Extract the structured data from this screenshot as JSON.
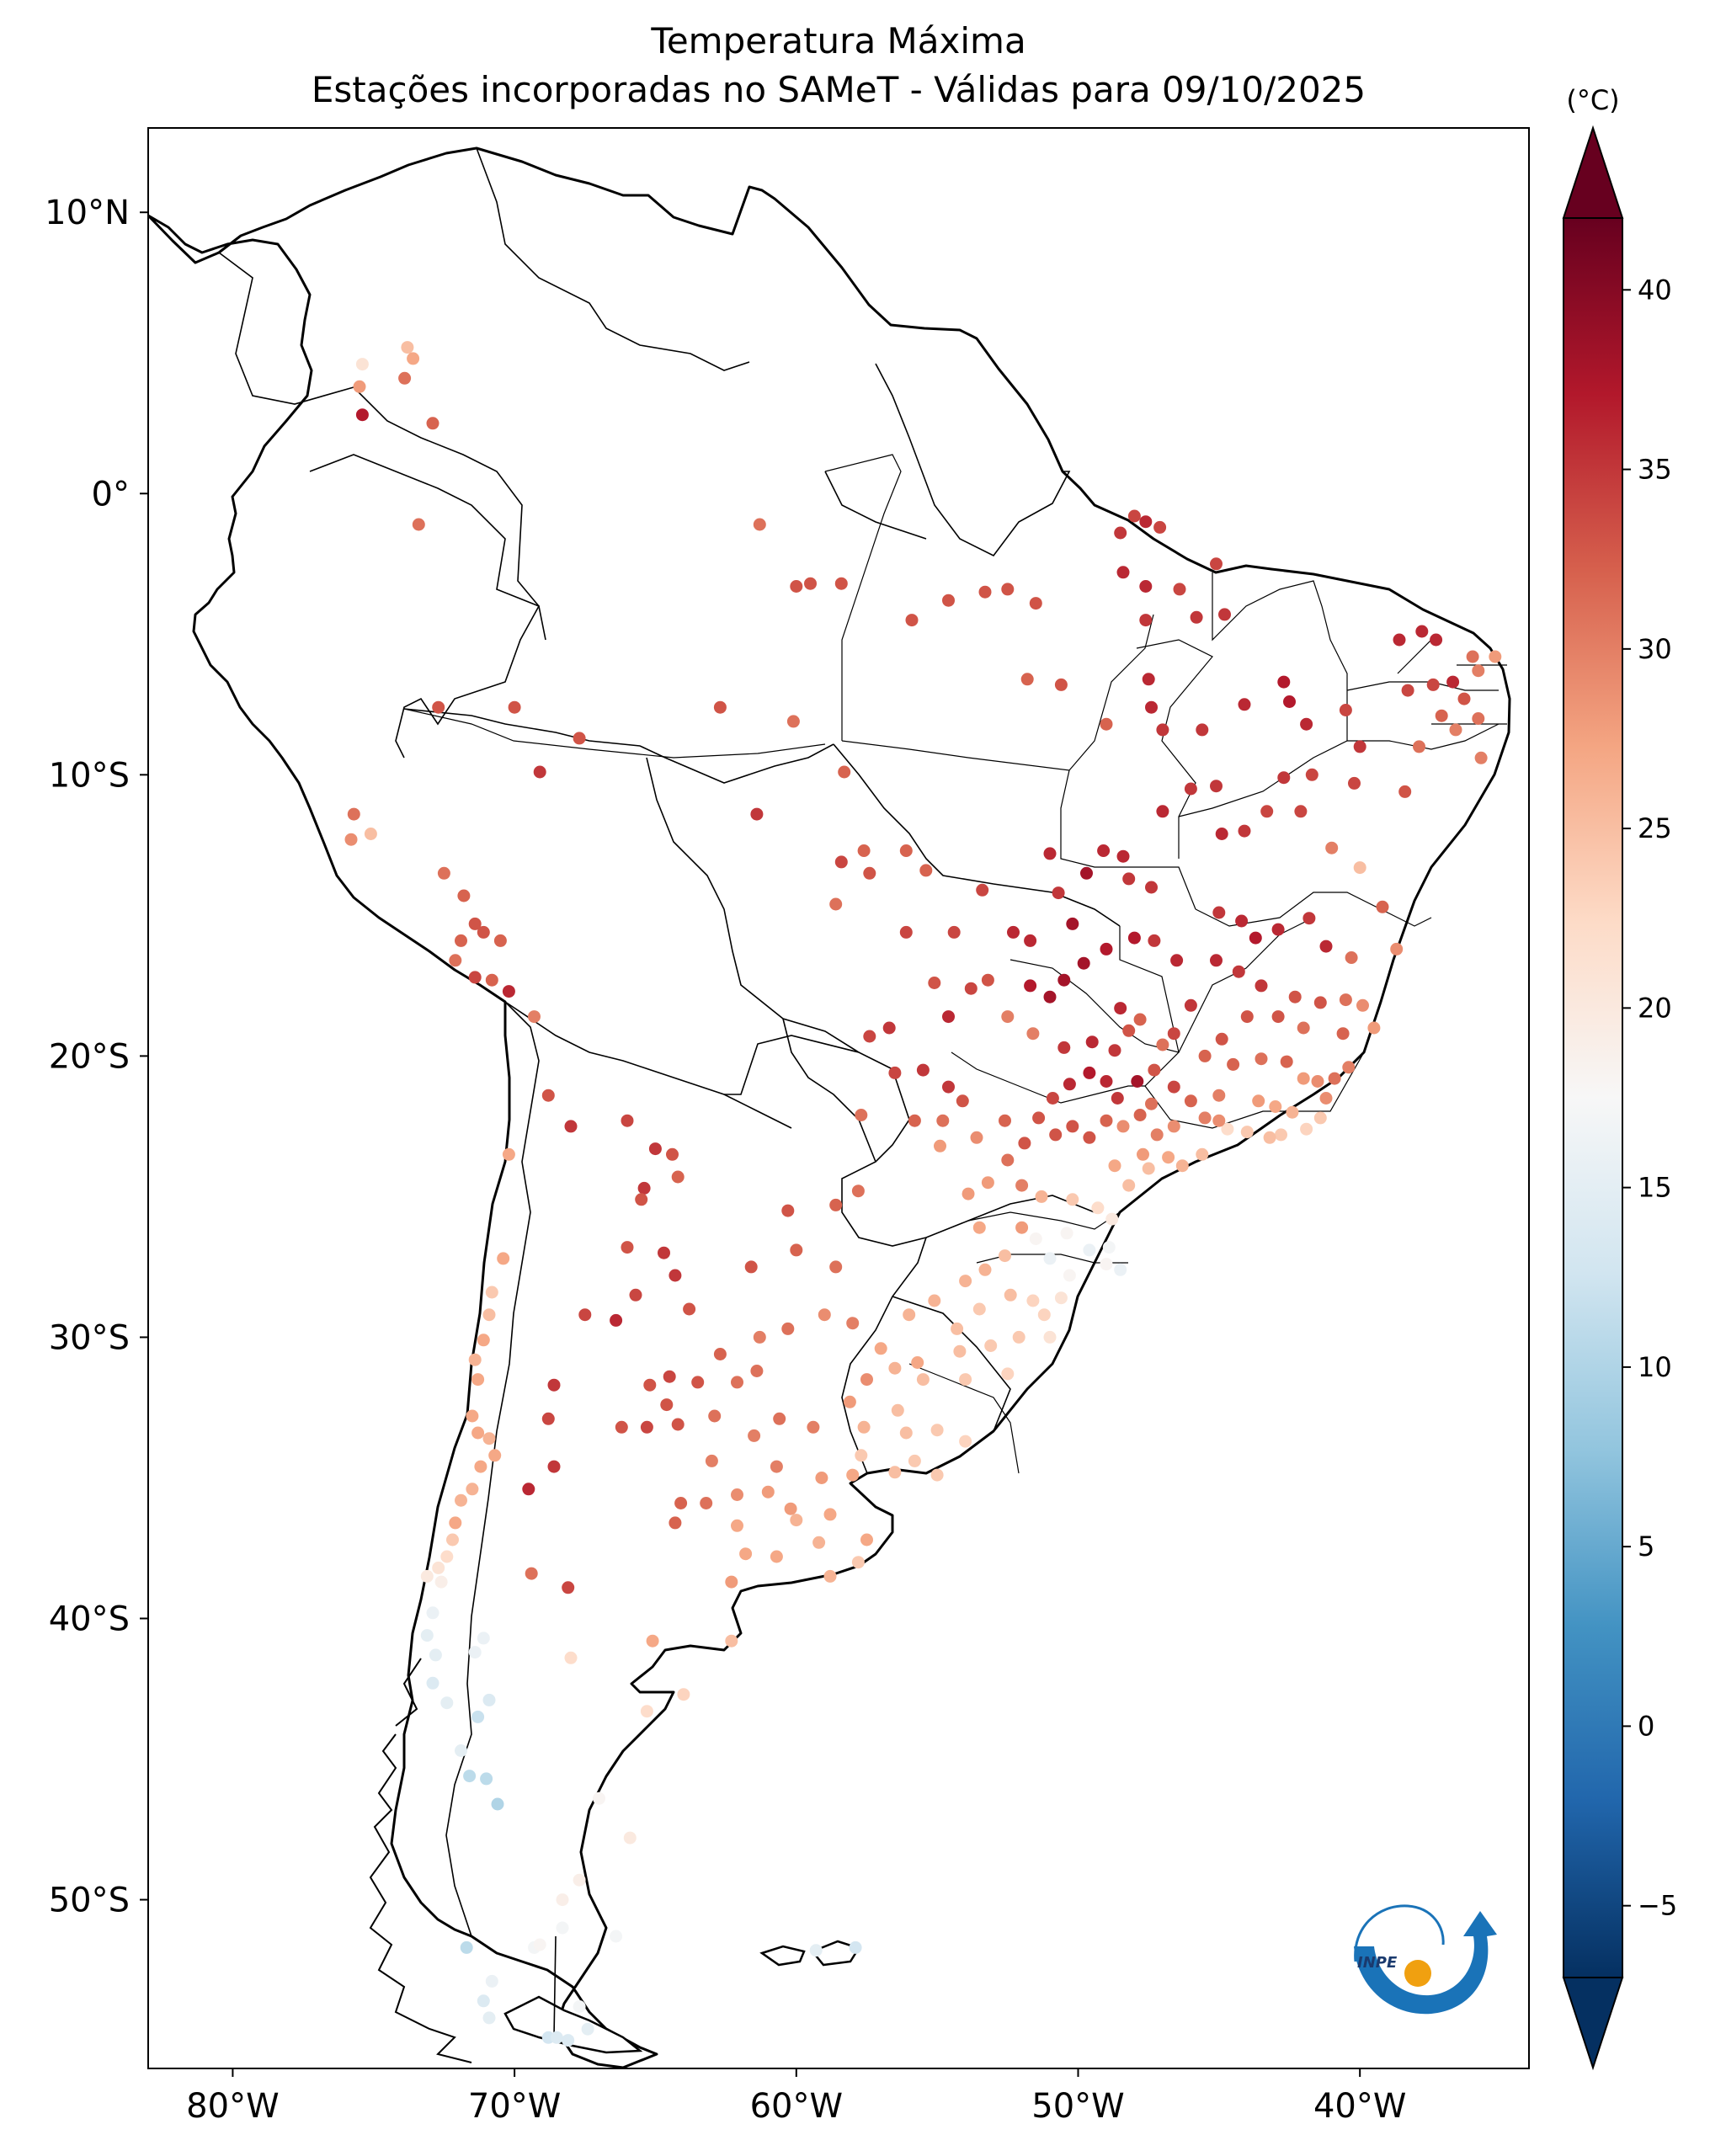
{
  "title": {
    "line1": "Temperatura Máxima",
    "line2": "Estações incorporadas no SAMeT - Válidas para 09/10/2025"
  },
  "colorbar": {
    "unit": "(°C)",
    "min": -7,
    "max": 42,
    "ticks": [
      "40",
      "35",
      "30",
      "25",
      "20",
      "15",
      "10",
      "5",
      "0",
      "−5"
    ],
    "tick_values": [
      40,
      35,
      30,
      25,
      20,
      15,
      10,
      5,
      0,
      -5
    ],
    "colormap": "RdBu_r",
    "stops": [
      "#053061",
      "#2166ac",
      "#4393c3",
      "#92c5de",
      "#d1e5f0",
      "#f7f7f7",
      "#fddbc7",
      "#f4a582",
      "#d6604d",
      "#b2182b",
      "#67001f"
    ]
  },
  "map": {
    "lon_range": [
      -83,
      -34
    ],
    "lat_range": [
      -56,
      13
    ],
    "lat_ticks": [
      "10°N",
      "0°",
      "10°S",
      "20°S",
      "30°S",
      "40°S",
      "50°S"
    ],
    "lat_tick_values": [
      10,
      0,
      -10,
      -20,
      -30,
      -40,
      -50
    ],
    "lon_ticks": [
      "80°W",
      "70°W",
      "60°W",
      "50°W",
      "40°W"
    ],
    "lon_tick_values": [
      -80,
      -70,
      -60,
      -50,
      -40
    ],
    "logo_text": "INPE"
  },
  "stations": [
    [
      -75.4,
      4.6,
      21
    ],
    [
      -75.5,
      3.8,
      28
    ],
    [
      -75.4,
      2.8,
      37
    ],
    [
      -73.8,
      5.2,
      25
    ],
    [
      -73.6,
      4.8,
      27
    ],
    [
      -73.9,
      4.1,
      31
    ],
    [
      -72.9,
      2.5,
      32
    ],
    [
      -73.4,
      -1.1,
      31
    ],
    [
      -61.3,
      -1.1,
      31
    ],
    [
      -60.0,
      -3.3,
      33
    ],
    [
      -59.5,
      -3.2,
      33
    ],
    [
      -58.4,
      -3.2,
      33
    ],
    [
      -55.9,
      -4.5,
      33
    ],
    [
      -54.6,
      -3.8,
      33
    ],
    [
      -53.3,
      -3.5,
      33
    ],
    [
      -52.5,
      -3.4,
      33
    ],
    [
      -51.5,
      -3.9,
      33
    ],
    [
      -48.5,
      -1.4,
      35
    ],
    [
      -47.6,
      -1.0,
      36
    ],
    [
      -48.0,
      -0.8,
      34
    ],
    [
      -47.1,
      -1.2,
      34
    ],
    [
      -48.4,
      -2.8,
      36
    ],
    [
      -47.6,
      -3.3,
      36
    ],
    [
      -47.6,
      -4.5,
      35
    ],
    [
      -46.4,
      -3.4,
      34
    ],
    [
      -45.8,
      -4.4,
      35
    ],
    [
      -44.8,
      -4.3,
      35
    ],
    [
      -45.1,
      -2.5,
      34
    ],
    [
      -50.6,
      -6.8,
      33
    ],
    [
      -51.8,
      -6.6,
      32
    ],
    [
      -49.0,
      -8.2,
      32
    ],
    [
      -47.5,
      -6.6,
      36
    ],
    [
      -47.4,
      -7.6,
      36
    ],
    [
      -47.0,
      -8.4,
      35
    ],
    [
      -45.6,
      -8.4,
      35
    ],
    [
      -44.1,
      -7.5,
      36
    ],
    [
      -42.7,
      -6.7,
      37
    ],
    [
      -42.5,
      -7.4,
      37
    ],
    [
      -41.9,
      -8.2,
      36
    ],
    [
      -40.5,
      -7.7,
      34
    ],
    [
      -40.0,
      -9.0,
      35
    ],
    [
      -38.6,
      -5.2,
      36
    ],
    [
      -37.8,
      -4.9,
      36
    ],
    [
      -37.3,
      -5.2,
      36
    ],
    [
      -36.7,
      -6.7,
      36
    ],
    [
      -36.0,
      -5.8,
      31
    ],
    [
      -35.8,
      -6.3,
      30
    ],
    [
      -35.2,
      -5.8,
      28
    ],
    [
      -36.3,
      -7.3,
      33
    ],
    [
      -35.8,
      -8.0,
      31
    ],
    [
      -36.6,
      -8.4,
      30
    ],
    [
      -35.7,
      -9.4,
      30
    ],
    [
      -38.3,
      -7.0,
      34
    ],
    [
      -37.4,
      -6.8,
      34
    ],
    [
      -37.1,
      -7.9,
      32
    ],
    [
      -37.9,
      -9.0,
      31
    ],
    [
      -72.7,
      -7.6,
      33
    ],
    [
      -70.0,
      -7.6,
      33
    ],
    [
      -67.7,
      -8.7,
      33
    ],
    [
      -69.1,
      -9.9,
      35
    ],
    [
      -62.7,
      -7.6,
      33
    ],
    [
      -60.1,
      -8.1,
      31
    ],
    [
      -58.3,
      -9.9,
      32
    ],
    [
      -61.4,
      -11.4,
      35
    ],
    [
      -57.6,
      -12.7,
      32
    ],
    [
      -56.1,
      -12.7,
      32
    ],
    [
      -55.4,
      -13.4,
      32
    ],
    [
      -53.4,
      -14.1,
      34
    ],
    [
      -51.0,
      -12.8,
      36
    ],
    [
      -50.7,
      -14.2,
      35
    ],
    [
      -49.7,
      -13.5,
      38
    ],
    [
      -49.1,
      -12.7,
      36
    ],
    [
      -48.4,
      -12.9,
      36
    ],
    [
      -47.0,
      -11.3,
      36
    ],
    [
      -46.0,
      -10.5,
      35
    ],
    [
      -45.1,
      -10.4,
      35
    ],
    [
      -42.7,
      -10.1,
      35
    ],
    [
      -41.7,
      -10.0,
      34
    ],
    [
      -40.2,
      -10.3,
      34
    ],
    [
      -38.4,
      -10.6,
      33
    ],
    [
      -44.9,
      -12.1,
      36
    ],
    [
      -44.1,
      -12.0,
      35
    ],
    [
      -43.3,
      -11.3,
      34
    ],
    [
      -42.1,
      -11.3,
      34
    ],
    [
      -41.0,
      -12.6,
      30
    ],
    [
      -40.0,
      -13.3,
      25
    ],
    [
      -45.0,
      -14.9,
      35
    ],
    [
      -44.2,
      -15.2,
      36
    ],
    [
      -43.7,
      -15.8,
      37
    ],
    [
      -42.9,
      -15.5,
      36
    ],
    [
      -41.8,
      -15.1,
      35
    ],
    [
      -41.2,
      -16.1,
      36
    ],
    [
      -40.3,
      -16.5,
      31
    ],
    [
      -39.2,
      -14.7,
      32
    ],
    [
      -38.7,
      -16.2,
      29
    ],
    [
      -45.1,
      -16.6,
      36
    ],
    [
      -44.3,
      -17.0,
      35
    ],
    [
      -43.5,
      -17.5,
      35
    ],
    [
      -42.3,
      -17.9,
      33
    ],
    [
      -41.4,
      -18.1,
      33
    ],
    [
      -40.5,
      -18.0,
      31
    ],
    [
      -40.6,
      -19.2,
      32
    ],
    [
      -39.9,
      -18.2,
      29
    ],
    [
      -39.5,
      -19.0,
      28
    ],
    [
      -42.0,
      -19.0,
      31
    ],
    [
      -42.9,
      -18.6,
      33
    ],
    [
      -44.0,
      -18.6,
      33
    ],
    [
      -44.9,
      -19.4,
      33
    ],
    [
      -46.0,
      -18.2,
      35
    ],
    [
      -46.5,
      -16.6,
      36
    ],
    [
      -47.3,
      -15.9,
      35
    ],
    [
      -48.0,
      -15.8,
      37
    ],
    [
      -49.0,
      -16.2,
      37
    ],
    [
      -49.8,
      -16.7,
      38
    ],
    [
      -50.5,
      -17.3,
      38
    ],
    [
      -51.0,
      -17.9,
      38
    ],
    [
      -51.7,
      -17.5,
      37
    ],
    [
      -51.7,
      -15.9,
      36
    ],
    [
      -52.3,
      -15.6,
      36
    ],
    [
      -50.2,
      -15.3,
      38
    ],
    [
      -47.4,
      -14.0,
      35
    ],
    [
      -48.2,
      -13.7,
      35
    ],
    [
      -58.4,
      -13.1,
      34
    ],
    [
      -57.4,
      -13.5,
      33
    ],
    [
      -58.6,
      -14.6,
      31
    ],
    [
      -56.1,
      -15.6,
      34
    ],
    [
      -54.4,
      -15.6,
      34
    ],
    [
      -53.8,
      -17.6,
      34
    ],
    [
      -55.1,
      -17.4,
      33
    ],
    [
      -54.6,
      -18.6,
      36
    ],
    [
      -53.2,
      -17.3,
      33
    ],
    [
      -52.5,
      -18.6,
      30
    ],
    [
      -51.6,
      -19.2,
      30
    ],
    [
      -50.5,
      -19.7,
      35
    ],
    [
      -49.5,
      -19.5,
      36
    ],
    [
      -48.7,
      -19.8,
      35
    ],
    [
      -48.2,
      -19.1,
      33
    ],
    [
      -48.5,
      -18.3,
      36
    ],
    [
      -47.8,
      -18.7,
      32
    ],
    [
      -47.0,
      -19.6,
      31
    ],
    [
      -46.6,
      -19.2,
      34
    ],
    [
      -45.5,
      -20.0,
      32
    ],
    [
      -44.5,
      -20.3,
      32
    ],
    [
      -43.5,
      -20.1,
      31
    ],
    [
      -42.6,
      -20.2,
      32
    ],
    [
      -42.0,
      -20.8,
      28
    ],
    [
      -41.5,
      -20.9,
      29
    ],
    [
      -41.2,
      -21.5,
      29
    ],
    [
      -40.4,
      -20.4,
      30
    ],
    [
      -40.9,
      -20.8,
      31
    ],
    [
      -43.0,
      -21.8,
      27
    ],
    [
      -43.6,
      -21.6,
      28
    ],
    [
      -42.4,
      -22.0,
      26
    ],
    [
      -41.4,
      -22.2,
      24
    ],
    [
      -41.9,
      -22.6,
      23
    ],
    [
      -42.8,
      -22.8,
      24
    ],
    [
      -43.2,
      -22.9,
      25
    ],
    [
      -44.0,
      -22.7,
      24
    ],
    [
      -44.7,
      -22.6,
      22
    ],
    [
      -45.5,
      -22.2,
      30
    ],
    [
      -45.0,
      -21.4,
      30
    ],
    [
      -46.0,
      -21.6,
      32
    ],
    [
      -46.6,
      -21.1,
      34
    ],
    [
      -47.3,
      -20.5,
      33
    ],
    [
      -47.9,
      -20.9,
      38
    ],
    [
      -47.4,
      -21.7,
      31
    ],
    [
      -45.0,
      -22.3,
      29
    ],
    [
      -56.7,
      -19.0,
      35
    ],
    [
      -57.4,
      -19.3,
      34
    ],
    [
      -55.5,
      -20.5,
      35
    ],
    [
      -56.5,
      -20.6,
      34
    ],
    [
      -54.6,
      -21.1,
      35
    ],
    [
      -54.1,
      -21.6,
      33
    ],
    [
      -57.7,
      -22.1,
      31
    ],
    [
      -55.8,
      -22.3,
      32
    ],
    [
      -54.8,
      -22.3,
      31
    ],
    [
      -54.9,
      -23.2,
      28
    ],
    [
      -53.6,
      -22.9,
      29
    ],
    [
      -52.6,
      -22.3,
      32
    ],
    [
      -51.4,
      -22.2,
      33
    ],
    [
      -50.9,
      -21.5,
      34
    ],
    [
      -50.3,
      -21.0,
      36
    ],
    [
      -49.6,
      -20.6,
      37
    ],
    [
      -49.0,
      -20.9,
      36
    ],
    [
      -48.6,
      -21.5,
      35
    ],
    [
      -47.8,
      -22.1,
      32
    ],
    [
      -48.4,
      -22.5,
      29
    ],
    [
      -49.0,
      -22.3,
      32
    ],
    [
      -49.6,
      -22.9,
      33
    ],
    [
      -50.2,
      -22.5,
      33
    ],
    [
      -50.8,
      -22.8,
      33
    ],
    [
      -51.9,
      -23.1,
      33
    ],
    [
      -52.5,
      -23.7,
      31
    ],
    [
      -52.0,
      -24.6,
      30
    ],
    [
      -53.2,
      -24.5,
      28
    ],
    [
      -53.9,
      -24.9,
      28
    ],
    [
      -51.3,
      -25.0,
      26
    ],
    [
      -50.2,
      -25.1,
      24
    ],
    [
      -49.3,
      -25.4,
      22
    ],
    [
      -48.8,
      -25.8,
      20
    ],
    [
      -48.2,
      -24.6,
      25
    ],
    [
      -47.5,
      -24.0,
      25
    ],
    [
      -46.8,
      -23.6,
      27
    ],
    [
      -46.3,
      -23.9,
      26
    ],
    [
      -45.6,
      -23.5,
      25
    ],
    [
      -46.6,
      -22.5,
      29
    ],
    [
      -47.2,
      -22.8,
      30
    ],
    [
      -47.7,
      -23.5,
      28
    ],
    [
      -48.7,
      -23.9,
      27
    ],
    [
      -53.5,
      -26.1,
      27
    ],
    [
      -52.0,
      -26.1,
      28
    ],
    [
      -51.5,
      -26.5,
      18
    ],
    [
      -50.4,
      -26.3,
      18
    ],
    [
      -49.6,
      -26.9,
      16
    ],
    [
      -48.9,
      -26.8,
      17
    ],
    [
      -49.0,
      -27.4,
      18
    ],
    [
      -48.5,
      -27.6,
      16
    ],
    [
      -50.3,
      -27.8,
      18
    ],
    [
      -51.0,
      -27.2,
      16
    ],
    [
      -52.6,
      -27.1,
      25
    ],
    [
      -53.3,
      -27.6,
      26
    ],
    [
      -54.0,
      -28.0,
      26
    ],
    [
      -55.1,
      -28.7,
      26
    ],
    [
      -56.0,
      -29.2,
      26
    ],
    [
      -54.3,
      -29.7,
      25
    ],
    [
      -53.5,
      -29.0,
      24
    ],
    [
      -52.4,
      -28.5,
      25
    ],
    [
      -51.6,
      -28.7,
      23
    ],
    [
      -50.6,
      -28.6,
      21
    ],
    [
      -51.2,
      -29.2,
      23
    ],
    [
      -51.0,
      -30.0,
      21
    ],
    [
      -52.1,
      -30.0,
      24
    ],
    [
      -53.1,
      -30.3,
      24
    ],
    [
      -54.2,
      -30.5,
      25
    ],
    [
      -55.7,
      -30.9,
      27
    ],
    [
      -57.0,
      -30.4,
      27
    ],
    [
      -56.5,
      -31.1,
      26
    ],
    [
      -55.5,
      -31.5,
      25
    ],
    [
      -54.0,
      -31.5,
      24
    ],
    [
      -52.5,
      -31.3,
      23
    ],
    [
      -56.4,
      -32.6,
      25
    ],
    [
      -57.6,
      -33.2,
      26
    ],
    [
      -56.1,
      -33.4,
      25
    ],
    [
      -55.0,
      -33.3,
      24
    ],
    [
      -54.0,
      -33.7,
      23
    ],
    [
      -55.8,
      -34.4,
      24
    ],
    [
      -56.5,
      -34.8,
      25
    ],
    [
      -57.7,
      -34.2,
      24
    ],
    [
      -55.0,
      -34.9,
      24
    ],
    [
      -65.4,
      -24.7,
      35
    ],
    [
      -65.5,
      -25.1,
      33
    ],
    [
      -64.2,
      -24.3,
      32
    ],
    [
      -64.4,
      -23.5,
      33
    ],
    [
      -66.0,
      -26.8,
      33
    ],
    [
      -64.7,
      -27.0,
      35
    ],
    [
      -64.3,
      -27.8,
      35
    ],
    [
      -65.7,
      -28.5,
      34
    ],
    [
      -63.8,
      -29.0,
      33
    ],
    [
      -61.6,
      -27.5,
      33
    ],
    [
      -60.0,
      -26.9,
      32
    ],
    [
      -60.3,
      -25.5,
      33
    ],
    [
      -58.6,
      -25.3,
      32
    ],
    [
      -57.8,
      -24.8,
      31
    ],
    [
      -58.6,
      -27.5,
      31
    ],
    [
      -60.3,
      -29.7,
      31
    ],
    [
      -61.3,
      -30.0,
      30
    ],
    [
      -59.0,
      -29.2,
      29
    ],
    [
      -58.0,
      -29.5,
      30
    ],
    [
      -57.5,
      -31.5,
      29
    ],
    [
      -58.1,
      -32.3,
      28
    ],
    [
      -59.4,
      -33.2,
      30
    ],
    [
      -60.6,
      -32.9,
      31
    ],
    [
      -61.4,
      -31.2,
      31
    ],
    [
      -62.1,
      -31.6,
      31
    ],
    [
      -62.7,
      -30.6,
      32
    ],
    [
      -63.5,
      -31.6,
      33
    ],
    [
      -64.5,
      -31.4,
      34
    ],
    [
      -65.2,
      -31.7,
      33
    ],
    [
      -64.6,
      -32.4,
      33
    ],
    [
      -66.4,
      -29.4,
      36
    ],
    [
      -67.5,
      -29.2,
      34
    ],
    [
      -68.6,
      -31.7,
      35
    ],
    [
      -68.8,
      -32.9,
      34
    ],
    [
      -68.6,
      -34.6,
      35
    ],
    [
      -69.5,
      -35.4,
      36
    ],
    [
      -66.2,
      -33.2,
      33
    ],
    [
      -65.3,
      -33.2,
      34
    ],
    [
      -64.2,
      -33.1,
      33
    ],
    [
      -62.9,
      -32.8,
      31
    ],
    [
      -63.0,
      -34.4,
      30
    ],
    [
      -61.5,
      -33.5,
      30
    ],
    [
      -60.7,
      -34.6,
      30
    ],
    [
      -59.1,
      -35.0,
      28
    ],
    [
      -58.0,
      -34.9,
      27
    ],
    [
      -58.8,
      -36.3,
      27
    ],
    [
      -60.2,
      -36.1,
      28
    ],
    [
      -61.0,
      -35.5,
      28
    ],
    [
      -62.1,
      -35.6,
      29
    ],
    [
      -63.2,
      -35.9,
      31
    ],
    [
      -64.3,
      -36.6,
      32
    ],
    [
      -64.1,
      -35.9,
      32
    ],
    [
      -62.1,
      -36.7,
      27
    ],
    [
      -60.0,
      -36.5,
      26
    ],
    [
      -59.2,
      -37.3,
      26
    ],
    [
      -57.5,
      -37.2,
      27
    ],
    [
      -57.8,
      -38.0,
      24
    ],
    [
      -60.7,
      -37.8,
      27
    ],
    [
      -61.8,
      -37.7,
      27
    ],
    [
      -62.3,
      -38.7,
      28
    ],
    [
      -58.8,
      -38.5,
      26
    ],
    [
      -75.7,
      -11.4,
      31
    ],
    [
      -75.8,
      -12.3,
      29
    ],
    [
      -75.1,
      -12.1,
      25
    ],
    [
      -72.5,
      -13.5,
      31
    ],
    [
      -71.8,
      -14.3,
      32
    ],
    [
      -71.4,
      -15.3,
      33
    ],
    [
      -71.1,
      -15.6,
      33
    ],
    [
      -71.9,
      -15.9,
      32
    ],
    [
      -70.5,
      -15.9,
      32
    ],
    [
      -72.1,
      -16.6,
      31
    ],
    [
      -71.4,
      -17.2,
      34
    ],
    [
      -70.8,
      -17.3,
      32
    ],
    [
      -70.2,
      -17.7,
      36
    ],
    [
      -69.3,
      -18.6,
      30
    ],
    [
      -68.8,
      -21.4,
      33
    ],
    [
      -68.0,
      -22.5,
      35
    ],
    [
      -66.0,
      -22.3,
      34
    ],
    [
      -65.0,
      -23.3,
      35
    ],
    [
      -70.2,
      -23.5,
      27
    ],
    [
      -70.4,
      -27.2,
      27
    ],
    [
      -70.8,
      -28.4,
      24
    ],
    [
      -70.9,
      -29.2,
      25
    ],
    [
      -71.1,
      -30.1,
      27
    ],
    [
      -71.4,
      -30.8,
      26
    ],
    [
      -71.3,
      -31.5,
      27
    ],
    [
      -71.5,
      -32.8,
      27
    ],
    [
      -71.3,
      -33.4,
      27
    ],
    [
      -70.9,
      -33.6,
      26
    ],
    [
      -70.7,
      -34.2,
      27
    ],
    [
      -71.2,
      -34.6,
      27
    ],
    [
      -71.5,
      -35.4,
      26
    ],
    [
      -71.9,
      -35.8,
      26
    ],
    [
      -72.1,
      -36.6,
      27
    ],
    [
      -72.2,
      -37.2,
      24
    ],
    [
      -72.4,
      -37.8,
      22
    ],
    [
      -72.7,
      -38.2,
      21
    ],
    [
      -73.1,
      -38.5,
      20
    ],
    [
      -72.6,
      -38.7,
      19
    ],
    [
      -72.9,
      -39.8,
      16
    ],
    [
      -73.1,
      -40.6,
      15
    ],
    [
      -72.8,
      -41.3,
      15
    ],
    [
      -72.9,
      -42.3,
      14
    ],
    [
      -72.4,
      -43.0,
      15
    ],
    [
      -71.1,
      -40.7,
      16
    ],
    [
      -71.4,
      -41.2,
      16
    ],
    [
      -70.9,
      -42.9,
      14
    ],
    [
      -71.3,
      -43.5,
      12
    ],
    [
      -71.9,
      -44.7,
      15
    ],
    [
      -71.6,
      -45.6,
      11
    ],
    [
      -71.0,
      -45.7,
      11
    ],
    [
      -70.6,
      -46.6,
      10
    ],
    [
      -71.7,
      -51.7,
      11
    ],
    [
      -71.1,
      -53.6,
      14
    ],
    [
      -70.8,
      -52.9,
      16
    ],
    [
      -70.9,
      -54.2,
      15
    ],
    [
      -69.3,
      -51.7,
      17
    ],
    [
      -68.3,
      -51.0,
      17
    ],
    [
      -67.7,
      -53.8,
      17
    ],
    [
      -67.4,
      -54.6,
      15
    ],
    [
      -68.8,
      -54.9,
      13
    ],
    [
      -68.1,
      -55.0,
      14
    ],
    [
      -68.5,
      -54.9,
      14
    ],
    [
      -68.1,
      -38.9,
      34
    ],
    [
      -69.4,
      -38.4,
      31
    ],
    [
      -68.0,
      -41.4,
      22
    ],
    [
      -65.1,
      -40.8,
      27
    ],
    [
      -64.0,
      -42.7,
      23
    ],
    [
      -65.3,
      -43.3,
      22
    ],
    [
      -62.3,
      -40.8,
      25
    ],
    [
      -67.0,
      -46.4,
      18
    ],
    [
      -65.9,
      -47.8,
      20
    ],
    [
      -67.7,
      -49.3,
      19
    ],
    [
      -69.1,
      -51.6,
      18
    ],
    [
      -68.3,
      -50.0,
      19
    ],
    [
      -66.4,
      -51.3,
      17
    ],
    [
      -57.9,
      -51.7,
      13
    ],
    [
      -59.3,
      -51.8,
      15
    ]
  ]
}
